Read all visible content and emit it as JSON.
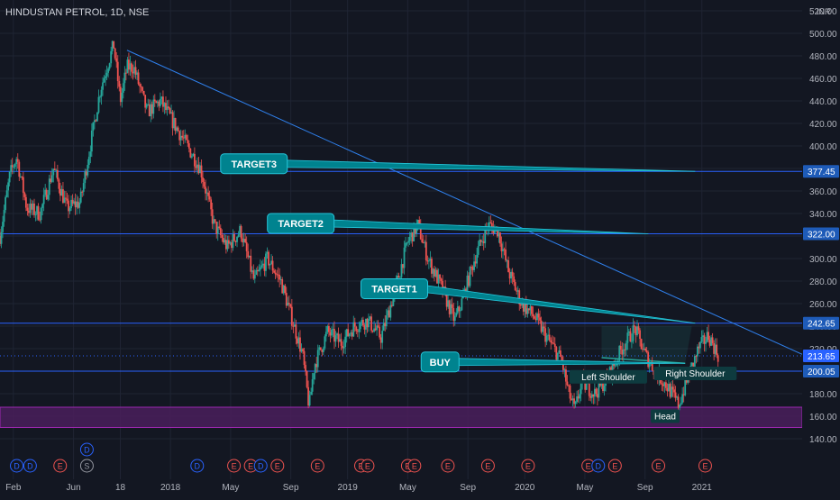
{
  "header": {
    "symbol_title": "HINDUSTAN PETROL, 1D, NSE",
    "currency": "INR"
  },
  "colors": {
    "background": "#131722",
    "grid": "#1f2433",
    "axis_text": "#b2b5be",
    "candle_up": "#26a69a",
    "candle_down": "#ef5350",
    "hline": "#2962ff",
    "trendline": "#2f80ed",
    "callout": "#00838f",
    "callout_border": "#26c6da",
    "zone_fill": "#4a1f5c",
    "zone_border": "#9c27b0",
    "price_tag": "#1e5bb8",
    "last_price_tag": "#2962ff"
  },
  "chart_data": {
    "type": "candlestick",
    "title": "HINDUSTAN PETROL, 1D, NSE",
    "ylabel": "INR",
    "ylim": [
      120,
      520
    ],
    "y_ticks": [
      140,
      160,
      180,
      200,
      220,
      240,
      260,
      280,
      300,
      320,
      340,
      360,
      380,
      400,
      420,
      440,
      460,
      480,
      500,
      520
    ],
    "x_tick_labels": [
      "Feb",
      "Jun",
      "18",
      "2018",
      "May",
      "Sep",
      "2019",
      "May",
      "Sep",
      "2020",
      "May",
      "Sep",
      "2021"
    ],
    "x_tick_t": [
      0.04,
      0.22,
      0.36,
      0.51,
      0.69,
      0.87,
      1.04,
      1.22,
      1.4,
      1.57,
      1.75,
      1.93,
      2.1
    ],
    "x_range_t": [
      0.0,
      2.4
    ],
    "price_anchors": [
      [
        0.0,
        320
      ],
      [
        0.03,
        375
      ],
      [
        0.05,
        390
      ],
      [
        0.08,
        345
      ],
      [
        0.12,
        340
      ],
      [
        0.16,
        380
      ],
      [
        0.2,
        345
      ],
      [
        0.24,
        350
      ],
      [
        0.27,
        400
      ],
      [
        0.3,
        450
      ],
      [
        0.32,
        470
      ],
      [
        0.34,
        490
      ],
      [
        0.36,
        440
      ],
      [
        0.38,
        470
      ],
      [
        0.4,
        470
      ],
      [
        0.44,
        430
      ],
      [
        0.48,
        440
      ],
      [
        0.52,
        420
      ],
      [
        0.56,
        400
      ],
      [
        0.6,
        380
      ],
      [
        0.64,
        330
      ],
      [
        0.68,
        310
      ],
      [
        0.72,
        325
      ],
      [
        0.76,
        280
      ],
      [
        0.8,
        300
      ],
      [
        0.84,
        280
      ],
      [
        0.88,
        240
      ],
      [
        0.905,
        215
      ],
      [
        0.925,
        168
      ],
      [
        0.94,
        205
      ],
      [
        0.98,
        235
      ],
      [
        1.02,
        225
      ],
      [
        1.06,
        240
      ],
      [
        1.1,
        245
      ],
      [
        1.14,
        230
      ],
      [
        1.18,
        270
      ],
      [
        1.22,
        315
      ],
      [
        1.25,
        330
      ],
      [
        1.28,
        300
      ],
      [
        1.32,
        275
      ],
      [
        1.36,
        245
      ],
      [
        1.38,
        260
      ],
      [
        1.42,
        300
      ],
      [
        1.46,
        330
      ],
      [
        1.49,
        325
      ],
      [
        1.52,
        290
      ],
      [
        1.56,
        260
      ],
      [
        1.6,
        248
      ],
      [
        1.64,
        228
      ],
      [
        1.68,
        210
      ],
      [
        1.7,
        182
      ],
      [
        1.72,
        165
      ],
      [
        1.74,
        190
      ],
      [
        1.78,
        180
      ],
      [
        1.82,
        195
      ],
      [
        1.86,
        220
      ],
      [
        1.9,
        238
      ],
      [
        1.93,
        215
      ],
      [
        1.96,
        200
      ],
      [
        2.0,
        185
      ],
      [
        2.03,
        170
      ],
      [
        2.06,
        195
      ],
      [
        2.09,
        220
      ],
      [
        2.12,
        232
      ],
      [
        2.15,
        213
      ]
    ],
    "horizontal_levels": [
      377.45,
      322.0,
      242.65,
      200.05
    ],
    "last_price": 213.65,
    "price_labels": [
      "377.45",
      "322.00",
      "242.65",
      "213.65",
      "200.05"
    ],
    "support_zone": [
      150,
      168
    ],
    "trendline": {
      "from": [
        0.38,
        485
      ],
      "to": [
        2.4,
        215
      ]
    },
    "neckline": {
      "from": [
        1.8,
        212
      ],
      "to": [
        2.05,
        207
      ],
      "fill_top": 240
    },
    "callouts": [
      {
        "label": "TARGET3",
        "at": [
          0.66,
          393
        ],
        "to": [
          2.08,
          377.45
        ]
      },
      {
        "label": "TARGET2",
        "at": [
          0.8,
          340
        ],
        "to": [
          1.94,
          322
        ]
      },
      {
        "label": "TARGET1",
        "at": [
          1.08,
          282
        ],
        "to": [
          2.08,
          242.65
        ]
      },
      {
        "label": "BUY",
        "at": [
          1.26,
          217
        ],
        "to": [
          2.05,
          207
        ]
      }
    ],
    "pattern_labels": [
      {
        "label": "Left Shoulder",
        "at": [
          1.82,
          193
        ]
      },
      {
        "label": "Right Shoulder",
        "at": [
          2.08,
          196
        ]
      },
      {
        "label": "Head",
        "at": [
          1.99,
          158
        ]
      }
    ],
    "events": [
      {
        "t": 0.05,
        "letter": "D",
        "color": "#2962ff"
      },
      {
        "t": 0.09,
        "letter": "D",
        "color": "#2962ff"
      },
      {
        "t": 0.18,
        "letter": "E",
        "color": "#ef5350"
      },
      {
        "t": 0.26,
        "letter": "S",
        "color": "#9598a1"
      },
      {
        "t": 0.26,
        "letter": "D",
        "color": "#2962ff",
        "row": 2
      },
      {
        "t": 0.59,
        "letter": "D",
        "color": "#2962ff"
      },
      {
        "t": 0.7,
        "letter": "E",
        "color": "#ef5350"
      },
      {
        "t": 0.75,
        "letter": "E",
        "color": "#ef5350"
      },
      {
        "t": 0.78,
        "letter": "D",
        "color": "#2962ff"
      },
      {
        "t": 0.83,
        "letter": "E",
        "color": "#ef5350"
      },
      {
        "t": 0.95,
        "letter": "E",
        "color": "#ef5350"
      },
      {
        "t": 1.08,
        "letter": "E",
        "color": "#ef5350"
      },
      {
        "t": 1.1,
        "letter": "E",
        "color": "#ef5350"
      },
      {
        "t": 1.22,
        "letter": "E",
        "color": "#ef5350"
      },
      {
        "t": 1.24,
        "letter": "E",
        "color": "#ef5350"
      },
      {
        "t": 1.34,
        "letter": "E",
        "color": "#ef5350"
      },
      {
        "t": 1.46,
        "letter": "E",
        "color": "#ef5350"
      },
      {
        "t": 1.58,
        "letter": "E",
        "color": "#ef5350"
      },
      {
        "t": 1.76,
        "letter": "E",
        "color": "#ef5350"
      },
      {
        "t": 1.79,
        "letter": "D",
        "color": "#2962ff"
      },
      {
        "t": 1.84,
        "letter": "E",
        "color": "#ef5350"
      },
      {
        "t": 1.97,
        "letter": "E",
        "color": "#ef5350"
      },
      {
        "t": 2.11,
        "letter": "E",
        "color": "#ef5350"
      }
    ]
  }
}
